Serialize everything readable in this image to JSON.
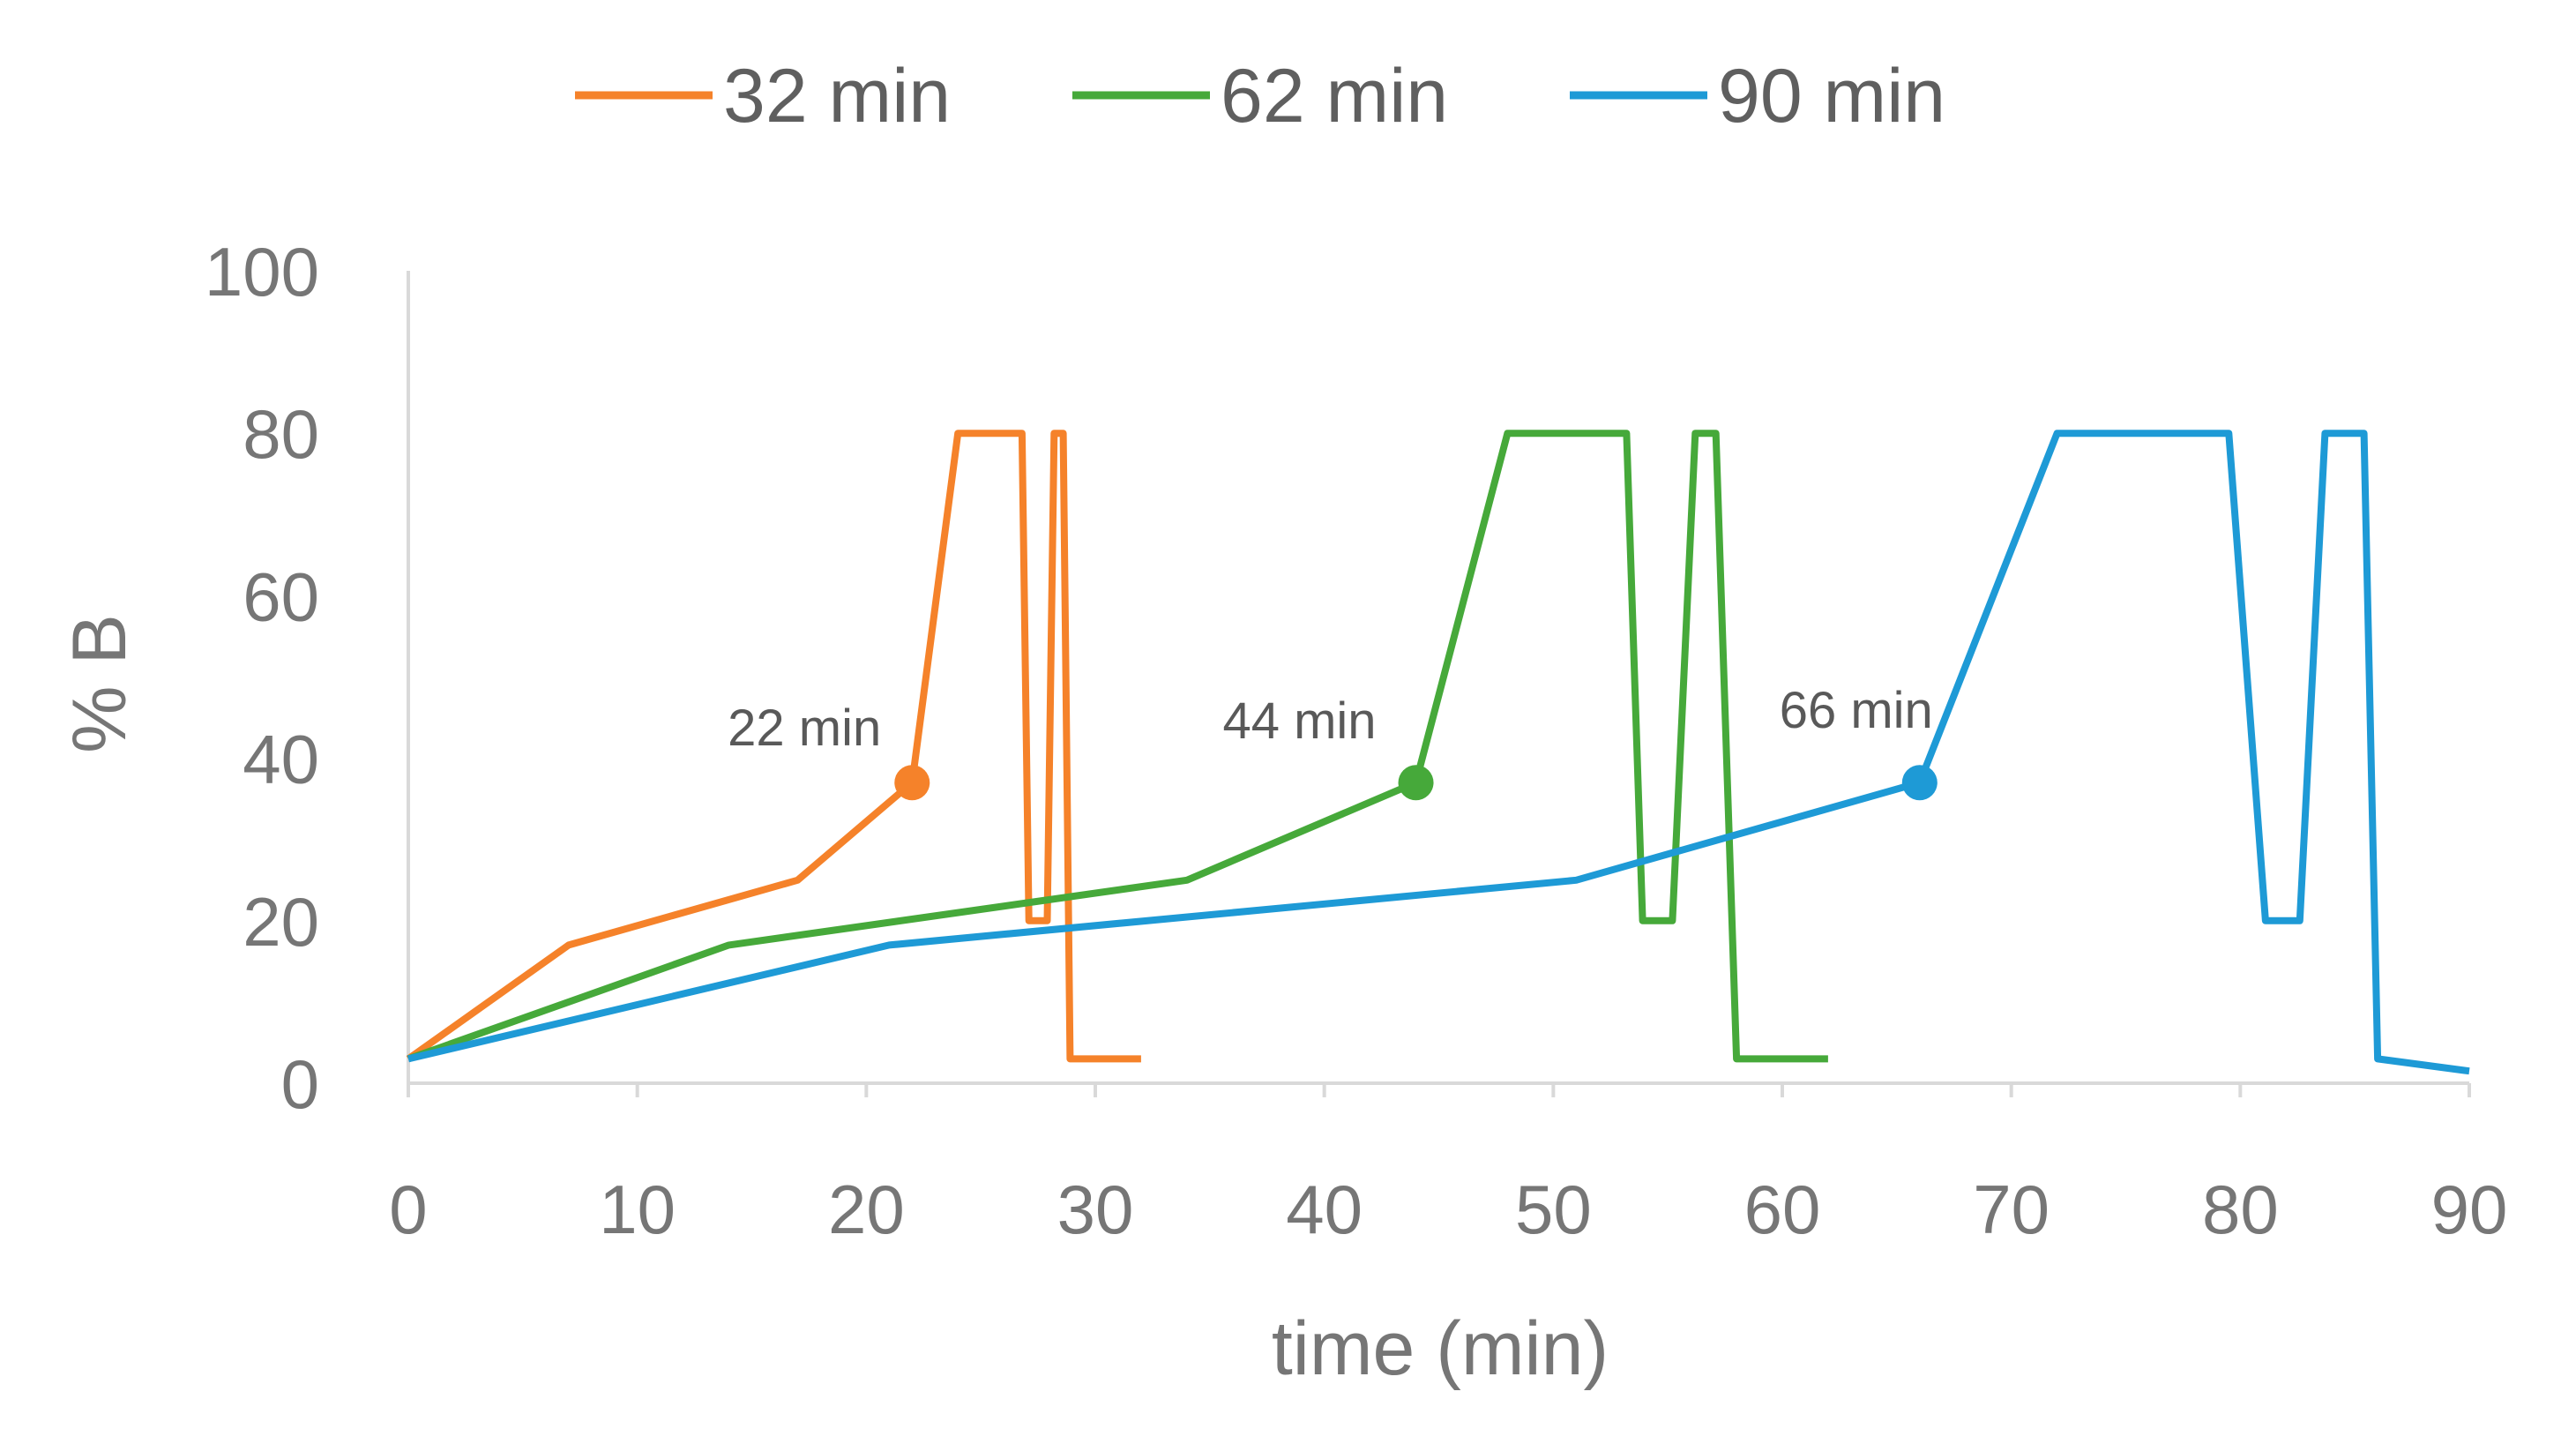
{
  "chart_data": {
    "type": "line",
    "title": "",
    "xlabel": "time (min)",
    "ylabel": "% B",
    "xlim": [
      0,
      90
    ],
    "ylim": [
      0,
      100
    ],
    "x_ticks": [
      0,
      10,
      20,
      30,
      40,
      50,
      60,
      70,
      80,
      90
    ],
    "y_ticks": [
      0,
      20,
      40,
      60,
      80,
      100
    ],
    "grid": false,
    "legend_position": "top-center",
    "series": [
      {
        "name": "32 min",
        "color": "#F5822A",
        "x": [
          0,
          7,
          17,
          22,
          24,
          26.8,
          27.1,
          27.9,
          28.2,
          28.6,
          28.9,
          32
        ],
        "y": [
          3,
          17,
          25,
          37,
          80,
          80,
          20,
          20,
          80,
          80,
          3,
          3
        ]
      },
      {
        "name": "62 min",
        "color": "#46A93A",
        "x": [
          0,
          14,
          34,
          44,
          48,
          53.2,
          53.9,
          55.2,
          56.2,
          57.1,
          58,
          62
        ],
        "y": [
          3,
          17,
          25,
          37,
          80,
          80,
          20,
          20,
          80,
          80,
          3,
          3
        ]
      },
      {
        "name": "90 min",
        "color": "#1E9AD6",
        "x": [
          0,
          21,
          51,
          66,
          72,
          79.5,
          81.1,
          82.6,
          83.7,
          85.4,
          86,
          90
        ],
        "y": [
          3,
          17,
          25,
          37,
          80,
          80,
          20,
          20,
          80,
          80,
          3,
          1.5
        ]
      }
    ],
    "markers": [
      {
        "series": "32 min",
        "x": 22,
        "y": 37,
        "label": "22 min"
      },
      {
        "series": "62 min",
        "x": 44,
        "y": 37,
        "label": "44 min"
      },
      {
        "series": "90 min",
        "x": 66,
        "y": 37,
        "label": "66 min"
      }
    ]
  }
}
